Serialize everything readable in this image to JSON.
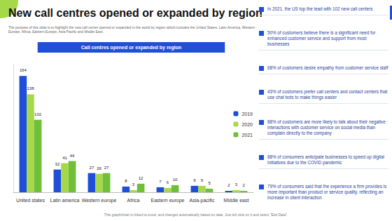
{
  "title": "New call centres opened or expanded by region",
  "subtitle": "The purpose of this slide is to highlight the new call center opened or expanded in the world by region which includes the United States, Latin America, Western Europe, Africa, Eastern Europe, Asia Pacific and Middle East.",
  "chart_data": {
    "type": "bar",
    "title": "Call centres opened or expanded by region",
    "categories": [
      "United states",
      "Latin america",
      "Western europe",
      "Africa",
      "Eastern europe",
      "Asia-pacific",
      "Middle east"
    ],
    "series": [
      {
        "name": "2019",
        "color": "#1f4fd8",
        "values": [
          164,
          32,
          27,
          8,
          7,
          9,
          2
        ]
      },
      {
        "name": "2020",
        "color": "#a6d94a",
        "values": [
          138,
          41,
          26,
          3,
          6,
          9,
          3
        ]
      },
      {
        "name": "2021",
        "color": "#6fbf3a",
        "values": [
          102,
          44,
          27,
          12,
          10,
          5,
          2
        ]
      }
    ],
    "ylim": [
      0,
      180
    ],
    "grid": false,
    "legend": "right",
    "data_labels": true,
    "tick_labels": "x"
  },
  "bullets": [
    "In 2021, the US top the lead with 102 new call centers",
    "50% of customers believe there is a significant need for enhanced customer service and support from most businesses",
    "68% of customers desire empathy from customer service staff",
    "43% of customers prefer call centers and contact centers that use chat bots to make things easier",
    "88% of customers are more likely to talk about their negative interactions with customer service on social media than complain directly to the company",
    "88% of consumers anticipate businesses to speed up digital initiatives due to the COVID pandemic",
    "79% of consumers said that the experience a firm provides is more important than product or service quality, reflecting an increase in client interaction"
  ],
  "footer": "This graph/chart is linked to excel, and changes automatically based on data. Just left click on it and select \"Edit Data\"."
}
